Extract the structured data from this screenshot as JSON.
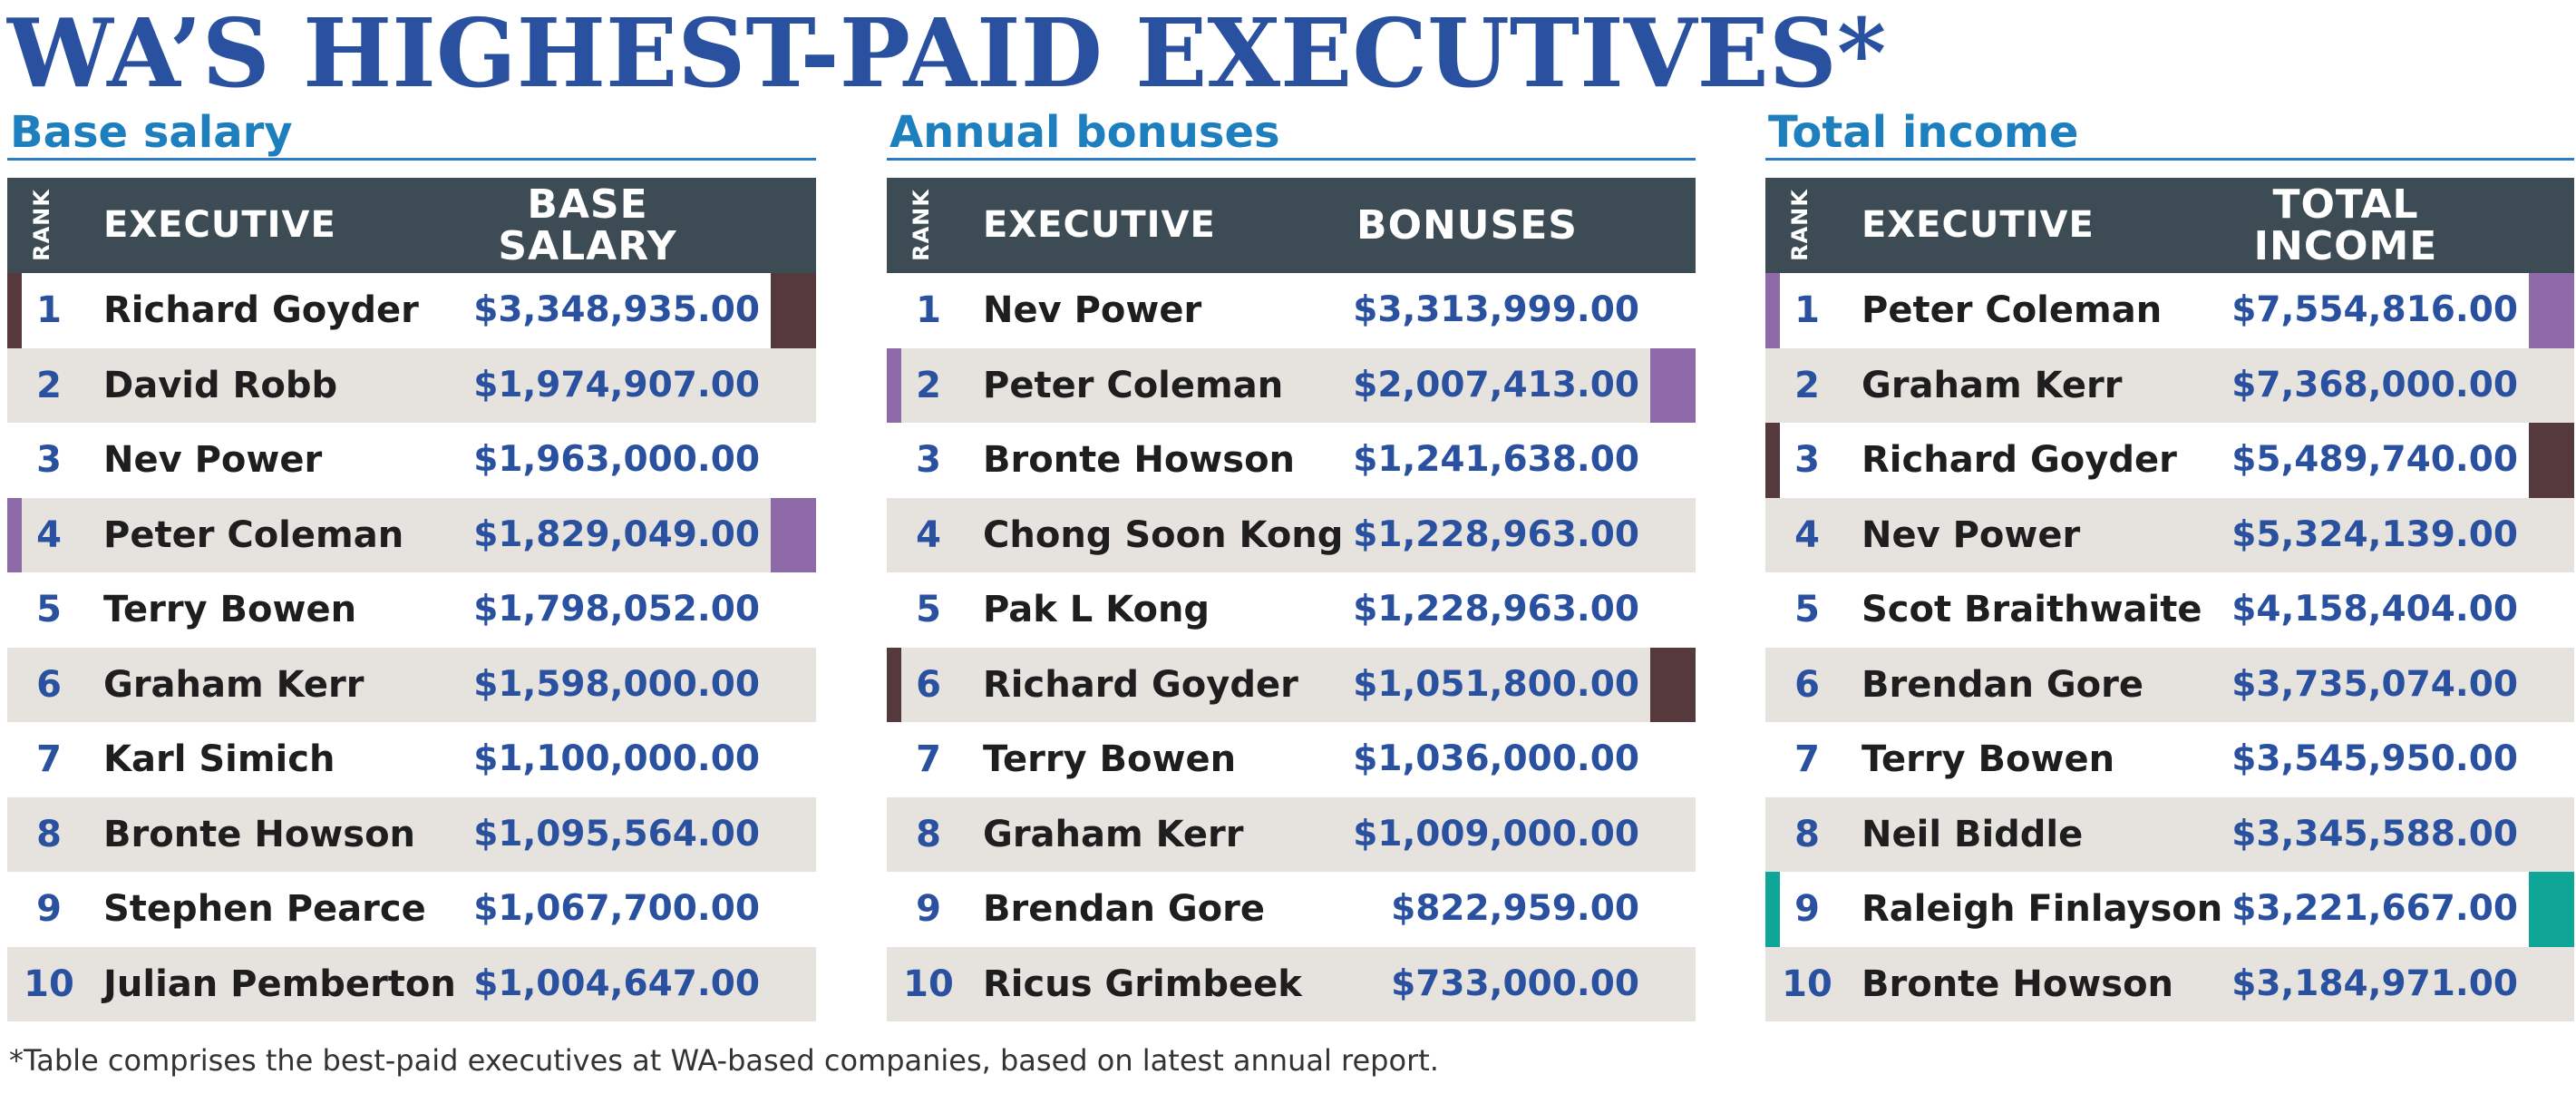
{
  "title": "WA’S HIGHEST-PAID EXECUTIVES*",
  "colors": {
    "title": "#2a51a0",
    "section_title": "#1d7fbd",
    "header_bg": "#3d4b55",
    "alt_row": "#e6e3de",
    "value_text": "#2a51a0",
    "Richard Goyder": "#55393d",
    "Peter Coleman": "#8f6aa9",
    "Raleigh Finlayson": "#10a697"
  },
  "panels": [
    {
      "section_title": "Base salary",
      "rank_header": "RANK",
      "executive_header": "EXECUTIVE",
      "value_header": "BASE\nSALARY",
      "rows": [
        {
          "rank": "1",
          "name": "Richard Goyder",
          "value": "$3,348,935.00",
          "highlight": "Richard Goyder"
        },
        {
          "rank": "2",
          "name": "David Robb",
          "value": "$1,974,907.00",
          "highlight": ""
        },
        {
          "rank": "3",
          "name": "Nev Power",
          "value": "$1,963,000.00",
          "highlight": ""
        },
        {
          "rank": "4",
          "name": "Peter Coleman",
          "value": "$1,829,049.00",
          "highlight": "Peter Coleman"
        },
        {
          "rank": "5",
          "name": "Terry Bowen",
          "value": "$1,798,052.00",
          "highlight": ""
        },
        {
          "rank": "6",
          "name": "Graham Kerr",
          "value": "$1,598,000.00",
          "highlight": ""
        },
        {
          "rank": "7",
          "name": "Karl Simich",
          "value": "$1,100,000.00",
          "highlight": ""
        },
        {
          "rank": "8",
          "name": "Bronte Howson",
          "value": "$1,095,564.00",
          "highlight": ""
        },
        {
          "rank": "9",
          "name": "Stephen Pearce",
          "value": "$1,067,700.00",
          "highlight": ""
        },
        {
          "rank": "10",
          "name": "Julian Pemberton",
          "value": "$1,004,647.00",
          "highlight": ""
        }
      ]
    },
    {
      "section_title": "Annual bonuses",
      "rank_header": "RANK",
      "executive_header": "EXECUTIVE",
      "value_header": "BONUSES",
      "rows": [
        {
          "rank": "1",
          "name": "Nev Power",
          "value": "$3,313,999.00",
          "highlight": ""
        },
        {
          "rank": "2",
          "name": "Peter Coleman",
          "value": "$2,007,413.00",
          "highlight": "Peter Coleman"
        },
        {
          "rank": "3",
          "name": "Bronte Howson",
          "value": "$1,241,638.00",
          "highlight": ""
        },
        {
          "rank": "4",
          "name": "Chong Soon Kong",
          "value": "$1,228,963.00",
          "highlight": ""
        },
        {
          "rank": "5",
          "name": "Pak L Kong",
          "value": "$1,228,963.00",
          "highlight": ""
        },
        {
          "rank": "6",
          "name": "Richard Goyder",
          "value": "$1,051,800.00",
          "highlight": "Richard Goyder"
        },
        {
          "rank": "7",
          "name": "Terry Bowen",
          "value": "$1,036,000.00",
          "highlight": ""
        },
        {
          "rank": "8",
          "name": "Graham Kerr",
          "value": "$1,009,000.00",
          "highlight": ""
        },
        {
          "rank": "9",
          "name": "Brendan Gore",
          "value": "$822,959.00",
          "highlight": ""
        },
        {
          "rank": "10",
          "name": "Ricus Grimbeek",
          "value": "$733,000.00",
          "highlight": ""
        }
      ]
    },
    {
      "section_title": "Total income",
      "rank_header": "RANK",
      "executive_header": "EXECUTIVE",
      "value_header": "TOTAL\nINCOME",
      "rows": [
        {
          "rank": "1",
          "name": "Peter Coleman",
          "value": "$7,554,816.00",
          "highlight": "Peter Coleman"
        },
        {
          "rank": "2",
          "name": "Graham Kerr",
          "value": "$7,368,000.00",
          "highlight": ""
        },
        {
          "rank": "3",
          "name": "Richard Goyder",
          "value": "$5,489,740.00",
          "highlight": "Richard Goyder"
        },
        {
          "rank": "4",
          "name": "Nev Power",
          "value": "$5,324,139.00",
          "highlight": ""
        },
        {
          "rank": "5",
          "name": "Scot Braithwaite",
          "value": "$4,158,404.00",
          "highlight": ""
        },
        {
          "rank": "6",
          "name": "Brendan Gore",
          "value": "$3,735,074.00",
          "highlight": ""
        },
        {
          "rank": "7",
          "name": "Terry Bowen",
          "value": "$3,545,950.00",
          "highlight": ""
        },
        {
          "rank": "8",
          "name": "Neil Biddle",
          "value": "$3,345,588.00",
          "highlight": ""
        },
        {
          "rank": "9",
          "name": "Raleigh Finlayson",
          "value": "$3,221,667.00",
          "highlight": "Raleigh Finlayson"
        },
        {
          "rank": "10",
          "name": "Bronte Howson",
          "value": "$3,184,971.00",
          "highlight": ""
        }
      ]
    }
  ],
  "footnote": "*Table comprises the best-paid executives at WA-based companies, based on latest annual report."
}
